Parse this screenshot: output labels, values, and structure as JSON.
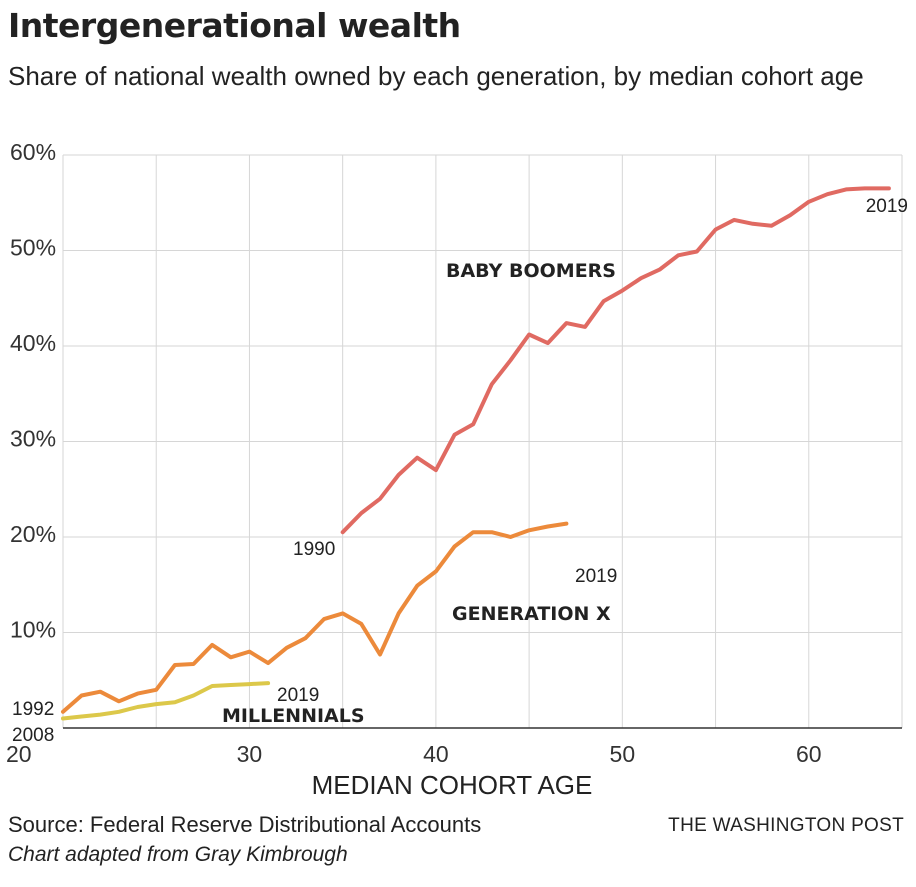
{
  "header": {
    "title": "Intergenerational wealth",
    "subtitle": "Share of national wealth owned by each generation, by median cohort age"
  },
  "footer": {
    "source": "Source: Federal Reserve Distributional Accounts",
    "credit": "Chart adapted from Gray Kimbrough",
    "brand": "THE WASHINGTON POST"
  },
  "chart_data": {
    "type": "line",
    "title": "Intergenerational wealth",
    "subtitle": "Share of national wealth owned by each generation, by median cohort age",
    "xlabel": "MEDIAN COHORT AGE",
    "ylabel": "",
    "xlim": [
      20,
      65
    ],
    "ylim": [
      0,
      60
    ],
    "x_ticks": [
      20,
      30,
      40,
      50,
      60
    ],
    "y_ticks": [
      10,
      20,
      30,
      40,
      50,
      60
    ],
    "y_tick_labels": [
      "10%",
      "20%",
      "30%",
      "40%",
      "50%",
      "60%"
    ],
    "grid": true,
    "legend": "none (series labeled directly on chart)",
    "series": [
      {
        "name": "BABY BOOMERS",
        "color": "#e06a62",
        "start_label": "1990",
        "end_label": "2019",
        "x": [
          35,
          36,
          37,
          38,
          39,
          40,
          41,
          42,
          43,
          44,
          45,
          46,
          47,
          48,
          49,
          50,
          51,
          52,
          53,
          54,
          55,
          56,
          57,
          58,
          59,
          60,
          61,
          62,
          63,
          64,
          64.3
        ],
        "y": [
          20.5,
          22.5,
          24.0,
          26.5,
          28.3,
          27.0,
          30.7,
          31.8,
          36.0,
          38.5,
          41.2,
          40.3,
          42.4,
          42.0,
          44.7,
          45.8,
          47.1,
          48.0,
          49.5,
          49.9,
          52.2,
          53.2,
          52.8,
          52.6,
          53.7,
          55.1,
          55.9,
          56.4,
          56.5,
          56.5,
          56.5
        ]
      },
      {
        "name": "GENERATION X",
        "color": "#ec8a3b",
        "start_label": "1992",
        "end_label": "2019",
        "x": [
          20,
          21,
          22,
          23,
          24,
          25,
          26,
          27,
          28,
          29,
          30,
          31,
          32,
          33,
          34,
          35,
          36,
          37,
          38,
          39,
          40,
          41,
          42,
          43,
          44,
          45,
          46,
          47
        ],
        "y": [
          1.7,
          3.4,
          3.8,
          2.8,
          3.6,
          4.0,
          6.6,
          6.7,
          8.7,
          7.4,
          8.0,
          6.8,
          8.4,
          9.4,
          11.4,
          12.0,
          10.9,
          7.7,
          12.0,
          14.9,
          16.4,
          19.0,
          20.5,
          20.5,
          20.0,
          20.7,
          21.1,
          21.4
        ]
      },
      {
        "name": "MILLENNIALS",
        "color": "#dcc84a",
        "start_label": "2008",
        "end_label": "2019",
        "x": [
          20,
          21,
          22,
          23,
          24,
          25,
          26,
          27,
          28,
          29,
          30,
          31
        ],
        "y": [
          1.0,
          1.2,
          1.4,
          1.7,
          2.2,
          2.5,
          2.7,
          3.4,
          4.4,
          4.5,
          4.6,
          4.7
        ]
      }
    ]
  }
}
